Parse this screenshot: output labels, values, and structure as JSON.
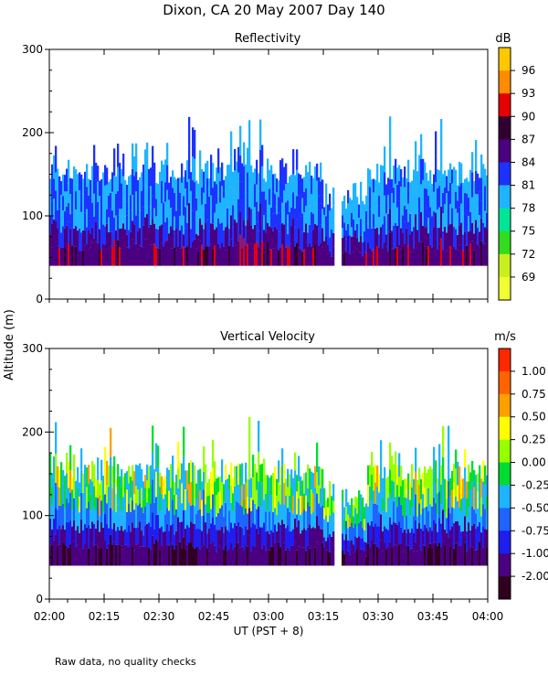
{
  "title": "Dixon, CA 20 May 2007  Day 140",
  "y_axis_label": "Altitude (m)",
  "x_axis_label": "UT  (PST + 8)",
  "footnote": "Raw data, no quality checks",
  "chart_data": [
    {
      "type": "heatmap",
      "title": "Reflectivity",
      "xlabel": "UT  (PST + 8)",
      "ylabel": "Altitude (m)",
      "x_ticks": [
        "02:00",
        "02:15",
        "02:30",
        "02:45",
        "03:00",
        "03:15",
        "03:30",
        "03:45",
        "04:00"
      ],
      "y_ticks": [
        "0",
        "100",
        "200",
        "300"
      ],
      "ylim": [
        0,
        300
      ],
      "xlim_hours": [
        2.0,
        4.0
      ],
      "colorbar": {
        "unit": "dB",
        "labels": [
          "96",
          "93",
          "90",
          "87",
          "84",
          "81",
          "78",
          "75",
          "72",
          "69"
        ],
        "colors": [
          "#ffc800",
          "#ff8c00",
          "#e60000",
          "#300030",
          "#4b0082",
          "#1e32ff",
          "#1eb4ff",
          "#00e696",
          "#32dc1e",
          "#c8f01e",
          "#f0ff32"
        ]
      },
      "echo_base_m": 40,
      "echo_top_m": [
        150,
        220
      ],
      "gap_hours": [
        3.3,
        3.33
      ]
    },
    {
      "type": "heatmap",
      "title": "Vertical Velocity",
      "xlabel": "UT  (PST + 8)",
      "ylabel": "Altitude (m)",
      "x_ticks": [
        "02:00",
        "02:15",
        "02:30",
        "02:45",
        "03:00",
        "03:15",
        "03:30",
        "03:45",
        "04:00"
      ],
      "y_ticks": [
        "0",
        "100",
        "200",
        "300"
      ],
      "ylim": [
        0,
        300
      ],
      "xlim_hours": [
        2.0,
        4.0
      ],
      "colorbar": {
        "unit": "m/s",
        "labels": [
          "1.00",
          "0.75",
          "0.50",
          "0.25",
          "0.00",
          "-0.25",
          "-0.50",
          "-0.75",
          "-1.00",
          "-2.00"
        ],
        "colors": [
          "#ff2800",
          "#ff6400",
          "#ffa000",
          "#ffff00",
          "#96ff00",
          "#00dc32",
          "#1eb4ff",
          "#1e64ff",
          "#1e1ef0",
          "#4b0082",
          "#300020"
        ]
      },
      "echo_base_m": 40,
      "echo_top_m": [
        150,
        220
      ],
      "gap_hours": [
        3.3,
        3.33
      ]
    }
  ]
}
